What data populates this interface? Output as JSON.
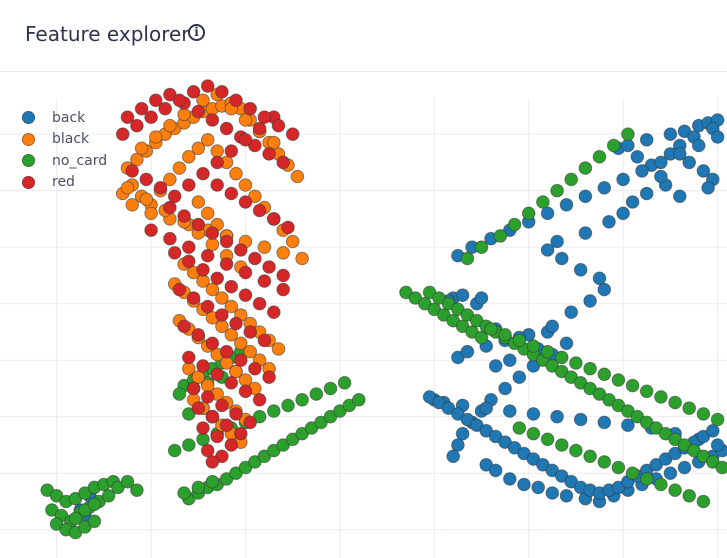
{
  "header": {
    "title": "Feature explorer",
    "info_icon": "info-icon"
  },
  "chart_data": {
    "type": "scatter",
    "title": "",
    "xlabel": "",
    "ylabel": "",
    "grid": true,
    "legend_position": "top-left",
    "xlim": [
      -4.2,
      11.2
    ],
    "ylim": [
      -8.6,
      8.6
    ],
    "x_gridlines": [
      -3,
      -1,
      1,
      3,
      5,
      7,
      9,
      11
    ],
    "y_gridlines": [
      -7.6,
      -5.6,
      -3.6,
      -1.6,
      0.4,
      2.4,
      4.4,
      6.4
    ],
    "legend": [
      {
        "name": "back",
        "color": "#1f77b4"
      },
      {
        "name": "black",
        "color": "#ff7f0e"
      },
      {
        "name": "no_card",
        "color": "#2ca02c"
      },
      {
        "name": "red",
        "color": "#d62728"
      }
    ],
    "series": [
      {
        "name": "back",
        "color": "#1f77b4",
        "x": [
          -2.5,
          -2.2,
          -2.4,
          -2.3,
          5.4,
          5.3,
          5.6,
          5.9,
          6.0,
          6.3,
          6.5,
          7.0,
          7.4,
          7.2,
          6.6,
          6.3,
          5.5,
          5.7,
          6.1,
          6.8,
          7.5,
          7.9,
          8.3,
          8.6,
          8.5,
          8.1,
          7.7,
          7.4,
          7.6,
          8.2,
          8.7,
          9.0,
          9.2,
          9.5,
          9.9,
          9.8,
          9.6,
          9.3,
          8.9,
          9.1,
          9.5,
          10.0,
          10.3,
          10.6,
          10.8,
          11.0,
          10.9,
          10.5,
          10.2,
          10.0,
          10.4,
          10.7,
          10.9,
          10.8,
          10.2,
          7.8,
          7.5,
          7.1,
          6.8,
          6.5,
          6.2,
          6.0,
          5.8,
          5.6,
          5.5,
          5.4,
          6.1,
          6.3,
          6.6,
          6.9,
          7.2,
          7.5,
          7.8,
          8.2,
          8.5,
          8.8,
          9.1,
          9.4,
          9.7,
          10.0,
          10.3,
          10.6,
          10.9,
          11.1,
          11.0,
          10.6,
          10.1,
          9.6,
          9.1,
          8.6,
          8.1,
          7.6,
          7.1,
          6.6,
          6.1,
          5.6,
          5.2,
          5.0,
          4.9,
          5.1,
          5.3,
          5.5,
          5.7,
          5.9,
          6.1,
          6.3,
          6.5,
          6.7,
          6.9,
          7.1,
          7.3,
          7.5,
          7.7,
          7.9,
          8.1,
          8.3,
          8.5,
          8.7,
          8.9,
          9.1,
          9.3,
          9.5,
          9.7,
          9.9,
          10.1,
          10.3,
          10.5,
          10.7,
          10.9,
          5.5,
          5.8,
          6.2,
          6.6,
          7.0,
          7.4,
          7.8,
          8.2,
          8.6,
          9.0,
          9.4,
          9.8,
          10.2,
          10.6,
          11.0
        ],
        "y": [
          -6.9,
          -6.6,
          -7.1,
          -6.4,
          0.6,
          0.5,
          0.7,
          0.4,
          0.6,
          -0.5,
          -0.9,
          -0.7,
          -0.6,
          -1.2,
          -1.6,
          -1.8,
          -1.5,
          -1.3,
          -1.1,
          -0.8,
          -0.4,
          0.1,
          0.5,
          0.9,
          1.3,
          1.6,
          2.0,
          2.3,
          2.6,
          2.9,
          3.3,
          3.6,
          4.0,
          4.3,
          4.6,
          4.9,
          5.3,
          5.6,
          5.9,
          6.0,
          6.2,
          6.4,
          6.5,
          6.7,
          6.8,
          6.9,
          6.6,
          6.3,
          6.0,
          5.7,
          5.4,
          5.1,
          4.8,
          4.5,
          4.2,
          -1.0,
          -1.4,
          -1.8,
          -2.2,
          -2.6,
          -3.0,
          -3.4,
          -3.8,
          -4.2,
          -4.6,
          -5.0,
          -5.3,
          -5.5,
          -5.8,
          -6.0,
          -6.1,
          -6.3,
          -6.4,
          -6.5,
          -6.6,
          -6.4,
          -6.2,
          -6.0,
          -5.8,
          -5.6,
          -5.4,
          -5.2,
          -5.0,
          -4.8,
          -4.6,
          -4.4,
          -4.2,
          -4.0,
          -3.9,
          -3.8,
          -3.7,
          -3.6,
          -3.5,
          -3.4,
          -3.3,
          -3.2,
          -3.1,
          -3.0,
          -2.9,
          -3.1,
          -3.3,
          -3.5,
          -3.7,
          -3.9,
          -4.1,
          -4.3,
          -4.5,
          -4.7,
          -4.9,
          -5.1,
          -5.3,
          -5.5,
          -5.7,
          -5.9,
          -6.1,
          -6.2,
          -6.3,
          -6.2,
          -6.1,
          -5.9,
          -5.7,
          -5.5,
          -5.3,
          -5.1,
          -4.9,
          -4.7,
          -4.5,
          -4.3,
          -4.1,
          2.1,
          2.4,
          2.7,
          3.0,
          3.3,
          3.6,
          3.9,
          4.2,
          4.5,
          4.8,
          5.1,
          5.4,
          5.7,
          6.0,
          6.3
        ]
      },
      {
        "name": "black",
        "color": "#ff7f0e",
        "x": [
          -1.5,
          -1.3,
          -1.1,
          -0.9,
          -0.7,
          -0.5,
          -0.3,
          -0.1,
          0.1,
          0.3,
          0.5,
          0.7,
          0.9,
          1.1,
          1.3,
          1.5,
          1.7,
          1.9,
          2.1,
          -1.4,
          -1.2,
          -1.0,
          -0.8,
          -0.6,
          -0.4,
          -0.2,
          0.0,
          0.2,
          0.4,
          0.6,
          0.8,
          1.0,
          1.2,
          1.4,
          1.6,
          1.8,
          2.0,
          -1.6,
          -1.4,
          -1.0,
          -0.6,
          -0.2,
          0.2,
          0.6,
          1.0,
          1.4,
          1.8,
          2.2,
          -0.3,
          -0.1,
          0.1,
          0.3,
          0.5,
          0.7,
          0.9,
          1.1,
          1.3,
          1.5,
          1.7,
          -0.5,
          -0.3,
          -0.1,
          0.1,
          0.3,
          0.5,
          0.7,
          0.9,
          1.1,
          1.3,
          1.5,
          -0.4,
          -0.2,
          0.0,
          0.2,
          0.4,
          0.6,
          0.8,
          1.0,
          1.2,
          -0.2,
          0.0,
          0.2,
          0.4,
          0.6,
          0.8,
          1.0,
          -0.1,
          0.1,
          0.3,
          0.5,
          0.7,
          0.9,
          0.0,
          0.2,
          0.4,
          0.6,
          -1.2,
          -0.9,
          -0.6,
          -0.3,
          0.1,
          0.4,
          0.7,
          1.0,
          1.3,
          1.6,
          -1.5,
          -1.1,
          -0.7,
          -0.3,
          0.0,
          0.3,
          0.6,
          0.9
        ],
        "y": [
          5.2,
          5.5,
          5.8,
          6.1,
          6.4,
          6.6,
          6.8,
          7.0,
          7.2,
          7.3,
          7.4,
          7.5,
          7.3,
          6.9,
          6.5,
          6.1,
          5.7,
          5.3,
          4.9,
          4.6,
          4.2,
          3.9,
          4.4,
          4.8,
          5.2,
          5.6,
          5.9,
          6.2,
          5.8,
          5.4,
          5.0,
          4.6,
          4.2,
          3.8,
          3.4,
          3.0,
          2.6,
          4.3,
          3.9,
          3.6,
          3.4,
          3.2,
          3.0,
          2.8,
          2.6,
          2.4,
          2.2,
          2.0,
          1.8,
          1.5,
          1.2,
          0.9,
          0.6,
          0.3,
          0.0,
          -0.3,
          -0.6,
          -0.9,
          -1.2,
          1.1,
          0.8,
          0.5,
          0.2,
          -0.1,
          -0.4,
          -0.7,
          -1.0,
          -1.3,
          -1.6,
          -1.9,
          -0.2,
          -0.5,
          -0.8,
          -1.1,
          -1.4,
          -1.7,
          -2.0,
          -2.3,
          -2.6,
          -1.9,
          -2.2,
          -2.5,
          -2.8,
          -3.1,
          -3.4,
          -3.7,
          -3.0,
          -3.3,
          -3.6,
          -3.9,
          -4.2,
          -4.5,
          4.0,
          3.6,
          3.2,
          2.8,
          5.9,
          6.3,
          6.7,
          7.1,
          7.6,
          7.8,
          7.3,
          6.9,
          6.5,
          6.1,
          4.5,
          4.1,
          3.7,
          3.3,
          2.9,
          2.5,
          2.1,
          1.7
        ]
      },
      {
        "name": "no_card",
        "color": "#2ca02c",
        "x": [
          -3.2,
          -3.0,
          -2.8,
          -2.6,
          -2.4,
          -2.2,
          -2.0,
          -1.8,
          -3.1,
          -2.9,
          -2.7,
          -2.5,
          -2.3,
          -2.1,
          -1.9,
          -3.0,
          -2.8,
          -2.6,
          -2.4,
          -2.2,
          -2.6,
          -2.4,
          -2.2,
          -1.7,
          -1.5,
          -1.3,
          -0.2,
          0.0,
          0.2,
          0.4,
          0.6,
          0.8,
          1.0,
          1.2,
          1.4,
          1.6,
          1.8,
          2.0,
          2.2,
          2.4,
          2.6,
          2.8,
          3.0,
          3.2,
          3.4,
          -0.3,
          -0.1,
          0.1,
          0.3,
          0.5,
          0.7,
          0.9,
          -0.5,
          -0.2,
          0.1,
          0.4,
          0.7,
          1.0,
          1.3,
          1.6,
          1.9,
          2.2,
          2.5,
          2.8,
          3.1,
          -0.4,
          -0.1,
          0.2,
          0.5,
          0.8,
          -0.3,
          0.0,
          0.3,
          -0.2,
          0.1,
          4.4,
          4.6,
          4.8,
          5.0,
          5.2,
          5.4,
          5.6,
          5.8,
          6.0,
          4.9,
          5.1,
          5.3,
          5.5,
          5.7,
          5.9,
          6.1,
          6.3,
          6.5,
          6.7,
          6.9,
          7.1,
          7.3,
          7.5,
          7.7,
          7.9,
          8.1,
          8.3,
          8.5,
          8.7,
          8.9,
          9.1,
          9.3,
          9.5,
          9.7,
          9.9,
          10.1,
          10.3,
          10.5,
          10.7,
          10.9,
          11.1,
          6.2,
          6.5,
          6.8,
          7.1,
          7.4,
          7.7,
          8.0,
          8.3,
          8.6,
          8.9,
          9.2,
          9.5,
          9.8,
          10.1,
          10.4,
          10.7,
          11.0,
          6.8,
          7.1,
          7.4,
          7.7,
          8.0,
          8.3,
          8.6,
          8.9,
          9.2,
          9.5,
          9.8,
          10.1,
          10.4,
          10.7,
          5.7,
          6.0,
          6.4,
          6.7,
          7.0,
          7.3,
          7.6,
          7.9,
          8.2,
          8.5,
          8.8,
          9.1
        ],
        "y": [
          -6.2,
          -6.4,
          -6.6,
          -6.5,
          -6.3,
          -6.1,
          -6.0,
          -5.9,
          -6.9,
          -7.1,
          -7.3,
          -7.0,
          -6.8,
          -6.6,
          -6.4,
          -7.4,
          -7.6,
          -7.2,
          -6.9,
          -6.7,
          -7.7,
          -7.5,
          -7.3,
          -6.1,
          -5.9,
          -6.2,
          -6.5,
          -6.3,
          -6.1,
          -6.0,
          -5.8,
          -5.6,
          -5.4,
          -5.2,
          -5.0,
          -4.8,
          -4.6,
          -4.4,
          -4.2,
          -4.0,
          -3.8,
          -3.6,
          -3.4,
          -3.2,
          -3.0,
          -2.5,
          -2.3,
          -2.1,
          -1.9,
          -1.7,
          -1.5,
          -1.3,
          -4.8,
          -4.6,
          -4.4,
          -4.2,
          -4.0,
          -3.8,
          -3.6,
          -3.4,
          -3.2,
          -3.0,
          -2.8,
          -2.6,
          -2.4,
          -2.8,
          -2.6,
          -2.4,
          -2.2,
          -2.0,
          -6.3,
          -6.1,
          -5.9,
          -3.5,
          -3.3,
          0.8,
          0.6,
          0.4,
          0.2,
          0.0,
          -0.2,
          -0.4,
          -0.6,
          -0.8,
          0.8,
          0.6,
          0.4,
          0.2,
          0.0,
          -0.2,
          -0.4,
          -0.6,
          -0.8,
          -1.0,
          -1.2,
          -1.4,
          -1.6,
          -1.8,
          -2.0,
          -2.2,
          -2.4,
          -2.6,
          -2.8,
          -3.0,
          -3.2,
          -3.4,
          -3.6,
          -3.8,
          -4.0,
          -4.2,
          -4.4,
          -4.6,
          -4.8,
          -5.0,
          -5.2,
          -5.4,
          -0.5,
          -0.7,
          -0.9,
          -1.1,
          -1.3,
          -1.5,
          -1.7,
          -1.9,
          -2.1,
          -2.3,
          -2.5,
          -2.7,
          -2.9,
          -3.1,
          -3.3,
          -3.5,
          -3.7,
          -4.0,
          -4.2,
          -4.4,
          -4.6,
          -4.8,
          -5.0,
          -5.2,
          -5.4,
          -5.6,
          -5.8,
          -6.0,
          -6.2,
          -6.4,
          -6.6,
          2.0,
          2.4,
          2.8,
          3.2,
          3.6,
          4.0,
          4.4,
          4.8,
          5.2,
          5.6,
          6.0,
          6.4
        ]
      },
      {
        "name": "red",
        "color": "#d62728",
        "x": [
          -1.5,
          -1.2,
          -0.9,
          -0.6,
          -0.3,
          0.0,
          0.3,
          0.6,
          0.9,
          1.2,
          1.5,
          1.8,
          -1.4,
          -1.1,
          -0.8,
          -0.5,
          -0.2,
          0.1,
          0.4,
          0.7,
          1.0,
          1.3,
          1.6,
          -0.6,
          -0.3,
          0.0,
          0.3,
          0.6,
          0.9,
          1.2,
          1.5,
          1.8,
          -0.5,
          -0.2,
          0.1,
          0.4,
          0.7,
          1.0,
          1.3,
          1.6,
          -0.4,
          -0.1,
          0.2,
          0.5,
          0.8,
          1.1,
          1.4,
          -0.3,
          0.0,
          0.3,
          0.6,
          0.9,
          1.2,
          1.5,
          -0.2,
          0.1,
          0.4,
          0.7,
          1.0,
          1.3,
          -0.1,
          0.2,
          0.5,
          0.8,
          1.1,
          0.0,
          0.3,
          0.6,
          0.9,
          0.1,
          0.4,
          0.7,
          0.2,
          0.5,
          0.3,
          -1.6,
          -1.3,
          -1.0,
          -0.7,
          -0.4,
          -0.1,
          0.2,
          0.5,
          0.8,
          1.1,
          1.4,
          1.7,
          2.0,
          -1.0,
          -0.6,
          -0.2,
          0.2,
          0.6,
          1.0,
          1.4,
          1.8,
          0.4,
          0.7,
          1.0,
          1.3,
          1.6,
          1.9
        ],
        "y": [
          7.0,
          7.3,
          7.6,
          7.8,
          7.5,
          7.2,
          6.9,
          6.6,
          6.3,
          6.0,
          5.7,
          5.4,
          5.1,
          4.8,
          4.5,
          4.2,
          4.6,
          5.0,
          5.4,
          5.8,
          6.2,
          6.6,
          7.0,
          3.8,
          3.5,
          3.2,
          2.9,
          2.6,
          2.3,
          2.0,
          1.7,
          1.4,
          2.2,
          1.9,
          1.6,
          1.3,
          1.0,
          0.7,
          0.4,
          0.1,
          0.9,
          0.6,
          0.3,
          0.0,
          -0.3,
          -0.6,
          -0.9,
          -0.4,
          -0.7,
          -1.0,
          -1.3,
          -1.6,
          -1.9,
          -2.2,
          -1.5,
          -1.8,
          -2.1,
          -2.4,
          -2.7,
          -3.0,
          -2.6,
          -2.9,
          -3.2,
          -3.5,
          -3.8,
          -3.3,
          -3.6,
          -3.9,
          -4.2,
          -4.0,
          -4.3,
          -4.6,
          -4.8,
          -5.0,
          -5.2,
          6.4,
          6.7,
          7.0,
          7.3,
          7.6,
          7.9,
          8.1,
          7.9,
          7.6,
          7.3,
          7.0,
          6.7,
          6.4,
          3.0,
          2.7,
          2.4,
          2.1,
          1.8,
          1.5,
          1.2,
          0.9,
          4.6,
          4.3,
          4.0,
          3.7,
          3.4,
          3.1
        ]
      }
    ]
  }
}
